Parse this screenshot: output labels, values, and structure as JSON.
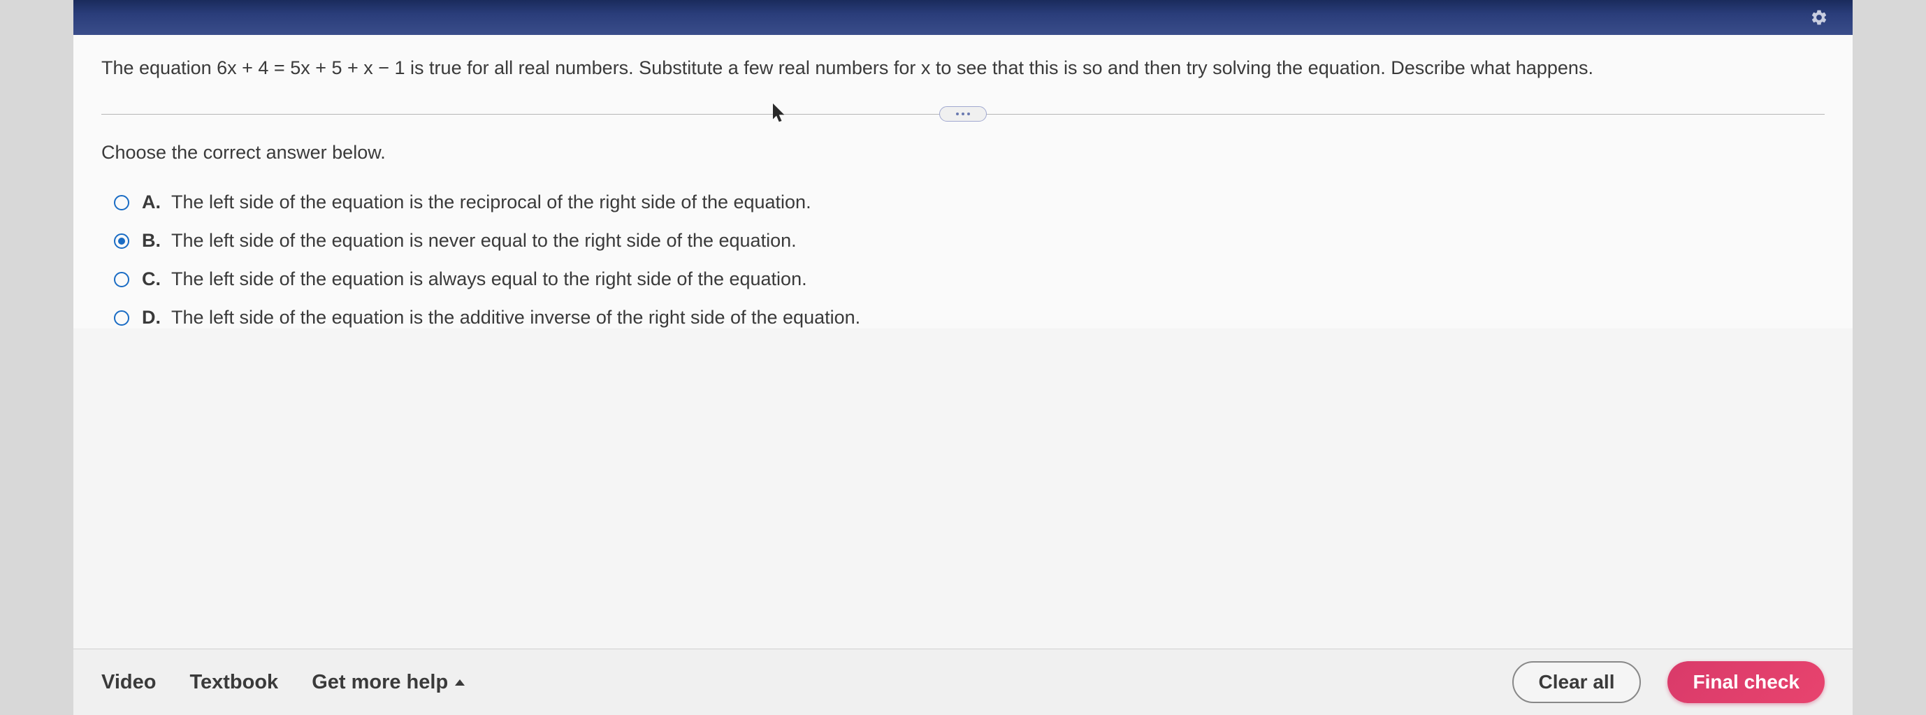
{
  "question": {
    "text": "The equation 6x + 4 = 5x + 5 + x − 1 is true for all real numbers. Substitute a few real numbers for x to see that this is so and then try solving the equation. Describe what happens."
  },
  "instruction": "Choose the correct answer below.",
  "options": [
    {
      "letter": "A.",
      "text": "The left side of the equation is the reciprocal of the right side of the equation.",
      "selected": false
    },
    {
      "letter": "B.",
      "text": "The left side of the equation is never equal to the right side of the equation.",
      "selected": true
    },
    {
      "letter": "C.",
      "text": "The left side of the equation is always equal to the right side of the equation.",
      "selected": false
    },
    {
      "letter": "D.",
      "text": "The left side of the equation is the additive inverse of the right side of the equation.",
      "selected": false
    }
  ],
  "footer": {
    "video": "Video",
    "textbook": "Textbook",
    "get_more_help": "Get more help",
    "clear_all": "Clear all",
    "final_check": "Final check"
  },
  "colors": {
    "header_gradient_start": "#1a2b5c",
    "header_gradient_end": "#3a4d8a",
    "radio_accent": "#1a6cc4",
    "text_color": "#3a3a3a",
    "final_check_bg": "#e8446e",
    "page_bg": "#d8d8d8",
    "content_bg": "#fafafa"
  },
  "typography": {
    "body_fontsize": 27,
    "footer_fontsize": 29,
    "font_family": "Arial"
  }
}
